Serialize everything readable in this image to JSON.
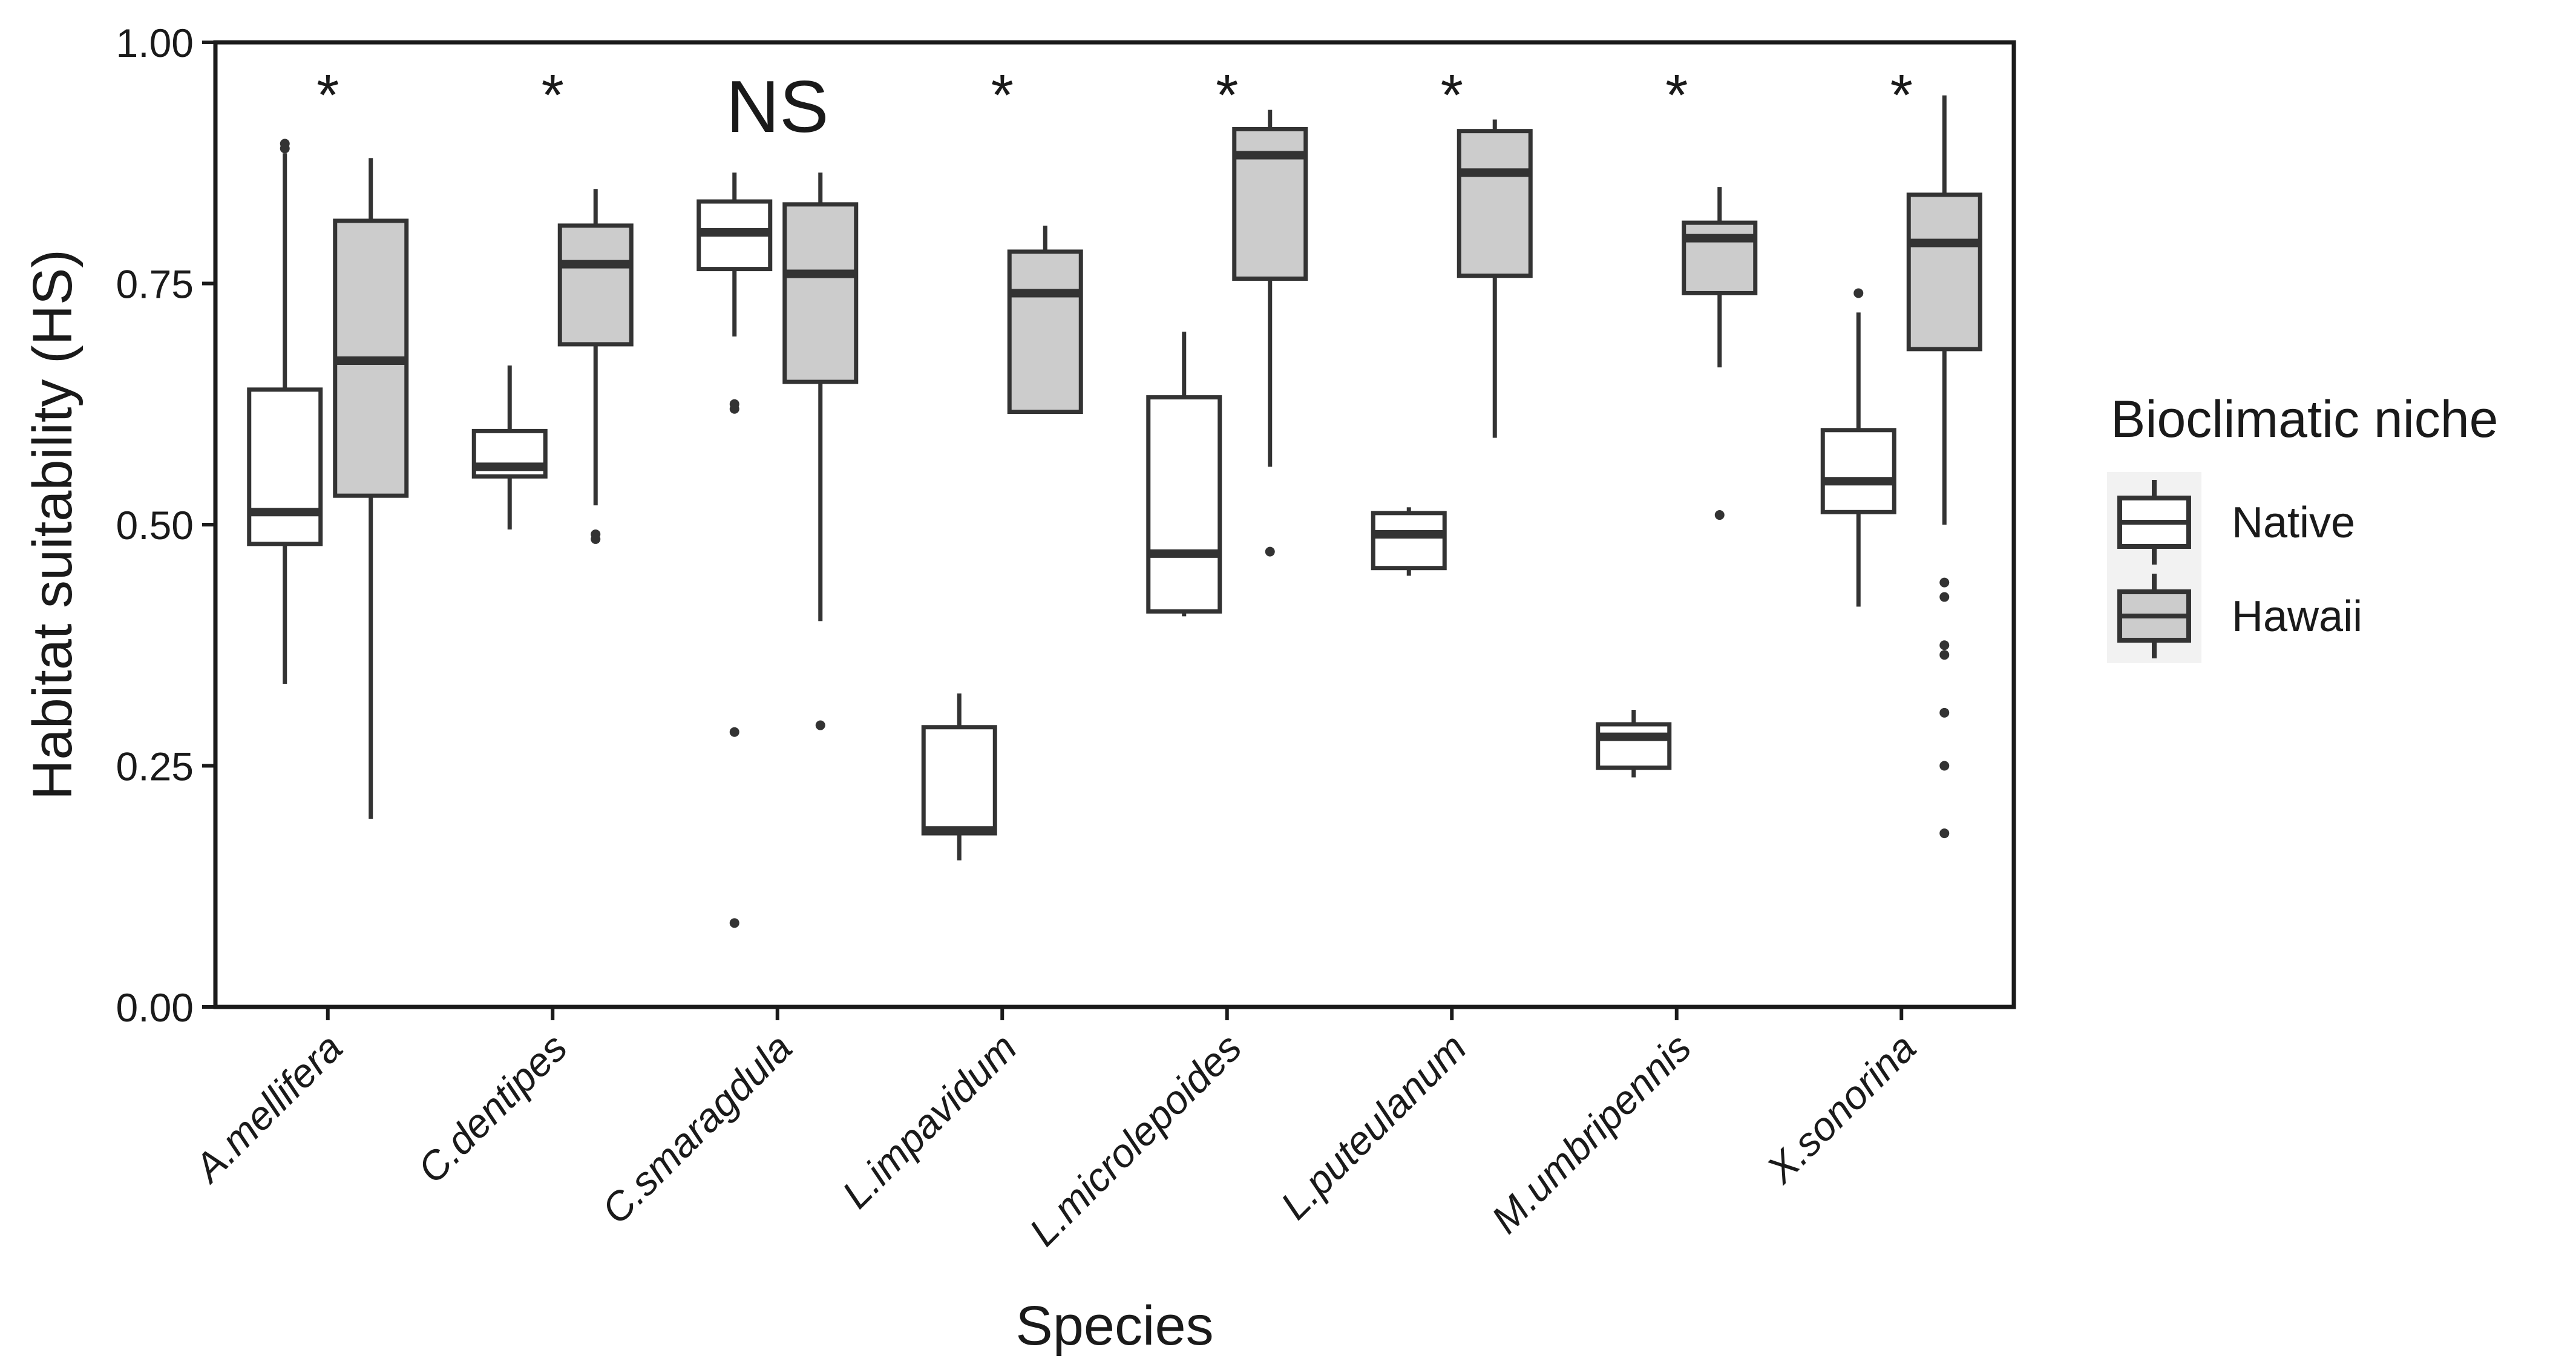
{
  "chart_data": {
    "type": "boxplot",
    "title": "",
    "xlabel": "Species",
    "ylabel": "Habitat suitability (HS)",
    "ylim": [
      0,
      1
    ],
    "yticks": [
      "0.00",
      "0.25",
      "0.50",
      "0.75",
      "1.00"
    ],
    "ytick_values": [
      0,
      0.25,
      0.5,
      0.75,
      1.0
    ],
    "grid": false,
    "legend": {
      "title": "Bioclimatic niche",
      "position": "right",
      "entries": [
        {
          "name": "Native",
          "fill": "#ffffff"
        },
        {
          "name": "Hawaii",
          "fill": "#cccccc"
        }
      ]
    },
    "categories": [
      "A.mellifera",
      "C.dentipes",
      "C.smaragdula",
      "L.impavidum",
      "L.microlepoides",
      "L.puteulanum",
      "M.umbripennis",
      "X.sonorina"
    ],
    "significance": [
      "*",
      "*",
      "NS",
      "*",
      "*",
      "*",
      "*",
      "*"
    ],
    "series": [
      {
        "name": "Native",
        "fill": "#ffffff",
        "boxes": [
          {
            "low": 0.335,
            "q1": 0.48,
            "median": 0.513,
            "q3": 0.64,
            "high": 0.885,
            "outliers": [
              0.89,
              0.895
            ]
          },
          {
            "low": 0.495,
            "q1": 0.55,
            "median": 0.56,
            "q3": 0.597,
            "high": 0.665,
            "outliers": []
          },
          {
            "low": 0.695,
            "q1": 0.765,
            "median": 0.803,
            "q3": 0.835,
            "high": 0.865,
            "outliers": [
              0.625,
              0.62,
              0.285,
              0.087
            ]
          },
          {
            "low": 0.152,
            "q1": 0.18,
            "median": 0.183,
            "q3": 0.29,
            "high": 0.325,
            "outliers": []
          },
          {
            "low": 0.405,
            "q1": 0.41,
            "median": 0.47,
            "q3": 0.632,
            "high": 0.7,
            "outliers": []
          },
          {
            "low": 0.447,
            "q1": 0.455,
            "median": 0.49,
            "q3": 0.512,
            "high": 0.518,
            "outliers": []
          },
          {
            "low": 0.238,
            "q1": 0.248,
            "median": 0.28,
            "q3": 0.293,
            "high": 0.308,
            "outliers": []
          },
          {
            "low": 0.415,
            "q1": 0.513,
            "median": 0.545,
            "q3": 0.598,
            "high": 0.72,
            "outliers": [
              0.74
            ]
          }
        ]
      },
      {
        "name": "Hawaii",
        "fill": "#cccccc",
        "boxes": [
          {
            "low": 0.195,
            "q1": 0.53,
            "median": 0.67,
            "q3": 0.815,
            "high": 0.88,
            "outliers": []
          },
          {
            "low": 0.52,
            "q1": 0.687,
            "median": 0.77,
            "q3": 0.81,
            "high": 0.848,
            "outliers": [
              0.49,
              0.485
            ]
          },
          {
            "low": 0.4,
            "q1": 0.648,
            "median": 0.76,
            "q3": 0.832,
            "high": 0.865,
            "outliers": [
              0.292
            ]
          },
          {
            "low": 0.617,
            "q1": 0.617,
            "median": 0.74,
            "q3": 0.783,
            "high": 0.81,
            "outliers": []
          },
          {
            "low": 0.56,
            "q1": 0.755,
            "median": 0.883,
            "q3": 0.91,
            "high": 0.93,
            "outliers": [
              0.472
            ]
          },
          {
            "low": 0.59,
            "q1": 0.758,
            "median": 0.865,
            "q3": 0.908,
            "high": 0.92,
            "outliers": []
          },
          {
            "low": 0.663,
            "q1": 0.74,
            "median": 0.797,
            "q3": 0.813,
            "high": 0.85,
            "outliers": [
              0.51
            ]
          },
          {
            "low": 0.5,
            "q1": 0.682,
            "median": 0.792,
            "q3": 0.842,
            "high": 0.945,
            "outliers": [
              0.44,
              0.425,
              0.375,
              0.365,
              0.305,
              0.25,
              0.18
            ]
          }
        ]
      }
    ]
  }
}
